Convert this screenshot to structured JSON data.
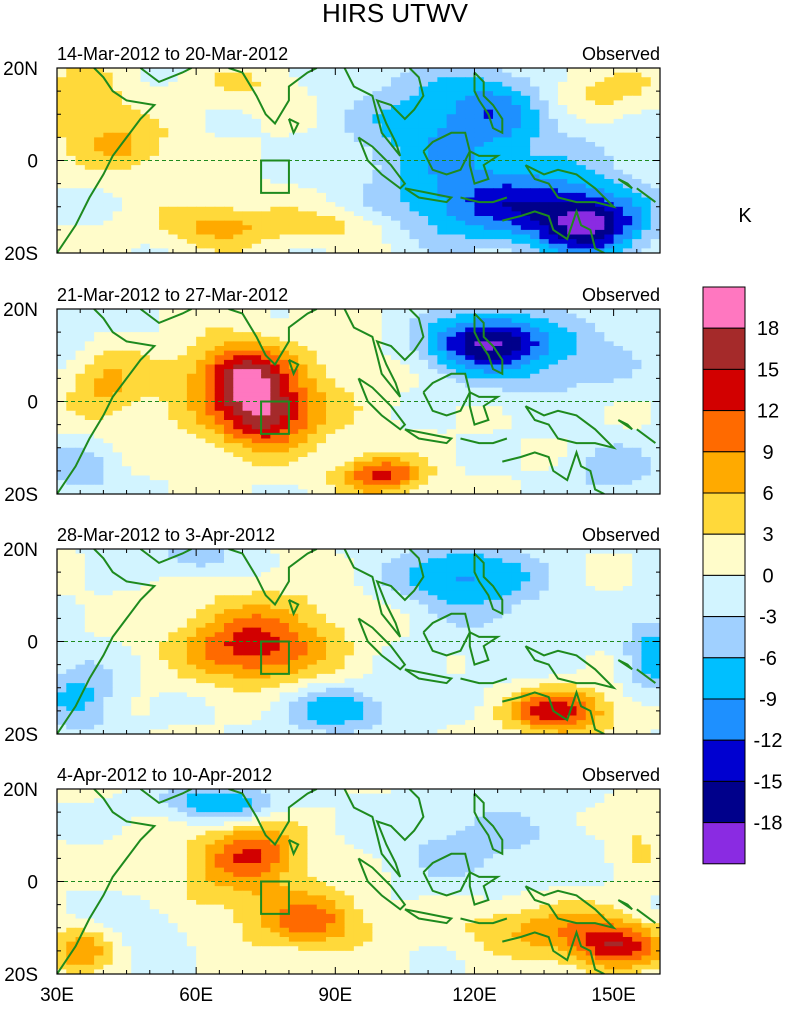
{
  "chart_data": {
    "type": "contour-map",
    "title": "HIRS UTWV",
    "colorbar_unit": "K",
    "levels": [
      18,
      15,
      12,
      9,
      6,
      3,
      0,
      -3,
      -6,
      -9,
      -12,
      -15,
      -18
    ],
    "level_labels": [
      "18",
      "15",
      "12",
      "9",
      "6",
      "3",
      "0",
      "-3",
      "-6",
      "-9",
      "-12",
      "-15",
      "-18"
    ],
    "colors": [
      "#ff77c0",
      "#a52a2a",
      "#d20000",
      "#ff6a00",
      "#ffaa00",
      "#ffd93a",
      "#fffcca",
      "#d2f4ff",
      "#a0d0ff",
      "#00bfff",
      "#1e90ff",
      "#0000d0",
      "#00008b",
      "#8a2be2"
    ],
    "lon_range": [
      30,
      160
    ],
    "lat_range": [
      -20,
      20
    ],
    "x_ticks": [
      30,
      60,
      90,
      120,
      150
    ],
    "x_tick_labels": [
      "30E",
      "60E",
      "90E",
      "120E",
      "150E"
    ],
    "y_ticks": [
      20,
      0,
      -20
    ],
    "y_tick_labels": [
      "20N",
      "0",
      "20S"
    ],
    "box_region": {
      "lon": [
        74,
        80
      ],
      "lat": [
        -7,
        0
      ]
    },
    "panels": [
      {
        "period": "14-Mar-2012 to 20-Mar-2012",
        "label": "Observed",
        "blobs": [
          {
            "lon": 145,
            "lat": -14,
            "amp": -15,
            "rlon": 12,
            "rlat": 7
          },
          {
            "lon": 125,
            "lat": -10,
            "amp": -10,
            "rlon": 22,
            "rlat": 8
          },
          {
            "lon": 110,
            "lat": 8,
            "amp": -7,
            "rlon": 16,
            "rlat": 12
          },
          {
            "lon": 125,
            "lat": 12,
            "amp": -6,
            "rlon": 10,
            "rlat": 8
          },
          {
            "lon": 130,
            "lat": 0,
            "amp": -4,
            "rlon": 25,
            "rlat": 15
          },
          {
            "lon": 35,
            "lat": 12,
            "amp": 6,
            "rlon": 10,
            "rlat": 8
          },
          {
            "lon": 45,
            "lat": 3,
            "amp": 6,
            "rlon": 10,
            "rlat": 6
          },
          {
            "lon": 65,
            "lat": -14,
            "amp": 7,
            "rlon": 14,
            "rlat": 5
          },
          {
            "lon": 90,
            "lat": -14,
            "amp": 4,
            "rlon": 12,
            "rlat": 4
          },
          {
            "lon": 148,
            "lat": 15,
            "amp": 5,
            "rlon": 12,
            "rlat": 6
          },
          {
            "lon": 70,
            "lat": 16,
            "amp": 3,
            "rlon": 12,
            "rlat": 5
          }
        ]
      },
      {
        "period": "21-Mar-2012 to 27-Mar-2012",
        "label": "Observed",
        "blobs": [
          {
            "lon": 75,
            "lat": -3,
            "amp": 13,
            "rlon": 10,
            "rlat": 7
          },
          {
            "lon": 70,
            "lat": 6,
            "amp": 12,
            "rlon": 9,
            "rlat": 6
          },
          {
            "lon": 72,
            "lat": 2,
            "amp": 6,
            "rlon": 22,
            "rlat": 12
          },
          {
            "lon": 100,
            "lat": -16,
            "amp": 13,
            "rlon": 9,
            "rlat": 4
          },
          {
            "lon": 40,
            "lat": 4,
            "amp": 6,
            "rlon": 8,
            "rlat": 8
          },
          {
            "lon": 122,
            "lat": 13,
            "amp": -15,
            "rlon": 12,
            "rlat": 6
          },
          {
            "lon": 135,
            "lat": 10,
            "amp": -6,
            "rlon": 20,
            "rlat": 9
          },
          {
            "lon": 150,
            "lat": -15,
            "amp": -5,
            "rlon": 10,
            "rlat": 6
          },
          {
            "lon": 35,
            "lat": -15,
            "amp": -5,
            "rlon": 8,
            "rlat": 6
          },
          {
            "lon": 33,
            "lat": 15,
            "amp": -3,
            "rlon": 7,
            "rlat": 6
          }
        ]
      },
      {
        "period": "28-Mar-2012 to 3-Apr-2012",
        "label": "Observed",
        "blobs": [
          {
            "lon": 138,
            "lat": -15,
            "amp": 14,
            "rlon": 11,
            "rlat": 5
          },
          {
            "lon": 72,
            "lat": -2,
            "amp": 10,
            "rlon": 14,
            "rlat": 7
          },
          {
            "lon": 75,
            "lat": 3,
            "amp": 5,
            "rlon": 20,
            "rlat": 10
          },
          {
            "lon": 118,
            "lat": 14,
            "amp": -10,
            "rlon": 15,
            "rlat": 7
          },
          {
            "lon": 60,
            "lat": 18,
            "amp": -5,
            "rlon": 10,
            "rlat": 4
          },
          {
            "lon": 90,
            "lat": -15,
            "amp": -8,
            "rlon": 12,
            "rlat": 5
          },
          {
            "lon": 35,
            "lat": -12,
            "amp": -7,
            "rlon": 8,
            "rlat": 8
          },
          {
            "lon": 158,
            "lat": -3,
            "amp": -8,
            "rlon": 5,
            "rlat": 8
          },
          {
            "lon": 130,
            "lat": 0,
            "amp": -2,
            "rlon": 20,
            "rlat": 10
          }
        ]
      },
      {
        "period": "4-Apr-2012 to 10-Apr-2012",
        "label": "Observed",
        "blobs": [
          {
            "lon": 150,
            "lat": -14,
            "amp": 13,
            "rlon": 10,
            "rlat": 5
          },
          {
            "lon": 135,
            "lat": -10,
            "amp": 7,
            "rlon": 18,
            "rlat": 6
          },
          {
            "lon": 85,
            "lat": -9,
            "amp": 9,
            "rlon": 12,
            "rlat": 6
          },
          {
            "lon": 72,
            "lat": 7,
            "amp": 9,
            "rlon": 10,
            "rlat": 6
          },
          {
            "lon": 70,
            "lat": 0,
            "amp": 5,
            "rlon": 20,
            "rlat": 10
          },
          {
            "lon": 35,
            "lat": -15,
            "amp": 8,
            "rlon": 6,
            "rlat": 5
          },
          {
            "lon": 65,
            "lat": 17,
            "amp": -9,
            "rlon": 12,
            "rlat": 4
          },
          {
            "lon": 120,
            "lat": 8,
            "amp": -4,
            "rlon": 22,
            "rlat": 10
          },
          {
            "lon": 50,
            "lat": -8,
            "amp": -3,
            "rlon": 8,
            "rlat": 6
          },
          {
            "lon": 155,
            "lat": 10,
            "amp": 4,
            "rlon": 6,
            "rlat": 8
          }
        ]
      }
    ]
  }
}
